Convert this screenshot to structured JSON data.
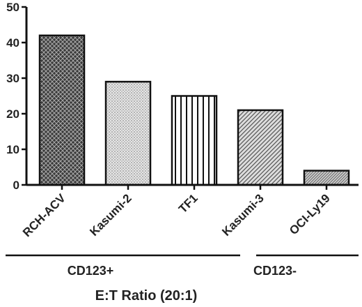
{
  "chart_data": {
    "type": "bar",
    "categories": [
      "RCH-ACV",
      "Kasumi-2",
      "TF1",
      "Kasumi-3",
      "OCI-Ly19"
    ],
    "values": [
      42,
      29,
      25,
      21,
      4
    ],
    "patterns": [
      "crosshatch-dark",
      "dots",
      "vertical-lines",
      "diagonal-hatch",
      "diagonal-hatch-fine"
    ],
    "yticks": [
      "0",
      "10",
      "20",
      "30",
      "40",
      "50"
    ],
    "ylim": [
      0,
      50
    ],
    "groups": [
      {
        "label": "CD123+",
        "categories": [
          "RCH-ACV",
          "Kasumi-2",
          "TF1",
          "Kasumi-3"
        ]
      },
      {
        "label": "CD123-",
        "categories": [
          "OCI-Ly19"
        ]
      }
    ],
    "xlabel": "E:T Ratio (20:1)",
    "ylabel": "",
    "title": "",
    "grid": false,
    "colors": {
      "bar_stroke": "#111111",
      "axis": "#111111",
      "text": "#222222"
    }
  }
}
